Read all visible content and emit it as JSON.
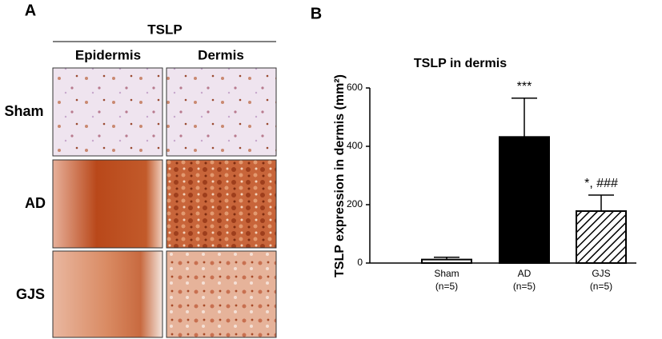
{
  "panel_a": {
    "label": "A",
    "title": "TSLP",
    "columns": [
      "Epidermis",
      "Dermis"
    ],
    "rows": [
      "Sham",
      "AD",
      "GJS"
    ]
  },
  "chart_data": {
    "type": "bar",
    "panel_label": "B",
    "title": "TSLP in dermis",
    "y_label": "TSLP expression in dermis (mm²)",
    "categories": [
      "Sham",
      "AD",
      "GJS"
    ],
    "group_sizes": [
      "(n=5)",
      "(n=5)",
      "(n=5)"
    ],
    "values": [
      12,
      432,
      178
    ],
    "errors": [
      8,
      133,
      55
    ],
    "annotations": [
      null,
      "***",
      "*, ###"
    ],
    "fills": [
      "#ffffff",
      "#000000",
      "#ffffff"
    ],
    "hatch": [
      false,
      false,
      true
    ],
    "ylim": [
      0,
      600
    ],
    "yticks": [
      0,
      200,
      400,
      600
    ],
    "grid": false
  }
}
